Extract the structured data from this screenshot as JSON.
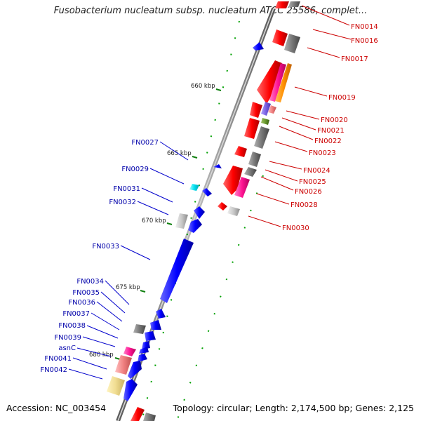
{
  "title": "Fusobacterium nucleatum subsp. nucleatum ATCC 25586, complet...",
  "footer": {
    "accession": "Accession: NC_003454",
    "summary": "Topology: circular; Length: 2,174,500 bp; Genes: 2,125"
  },
  "scale_marks": [
    "660 kbp",
    "665 kbp",
    "670 kbp",
    "675 kbp",
    "680 kbp"
  ],
  "colors": {
    "forward_strand": "#ff0000",
    "reverse_strand": "#0000ff",
    "forward_label": "#cc0000",
    "reverse_label": "#0000aa",
    "backbone": "#808080",
    "tick_green": "#00a000"
  },
  "right_labels": [
    "FN0014",
    "FN0016",
    "FN0017",
    "FN0019",
    "FN0020",
    "FN0021",
    "FN0022",
    "FN0023",
    "FN0024",
    "FN0025",
    "FN0026",
    "FN0028",
    "FN0030"
  ],
  "left_labels": [
    "FN0027",
    "FN0029",
    "FN0031",
    "FN0032",
    "FN0033",
    "FN0034",
    "FN0035",
    "FN0036",
    "FN0037",
    "FN0038",
    "FN0039",
    "asnC",
    "FN0041",
    "FN0042"
  ]
}
